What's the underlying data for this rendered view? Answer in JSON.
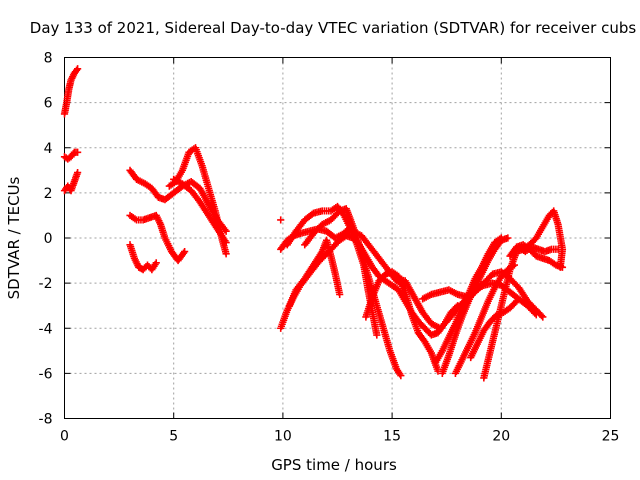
{
  "chart_data": {
    "type": "scatter",
    "title": "Day 133 of 2021, Sidereal Day-to-day VTEC variation (SDTVAR) for receiver cubs",
    "xlabel": "GPS time / hours",
    "ylabel": "SDTVAR / TECUs",
    "xlim": [
      0,
      25
    ],
    "ylim": [
      -8,
      8
    ],
    "xticks": [
      "0",
      "5",
      "10",
      "15",
      "20",
      "25"
    ],
    "yticks": [
      "-8",
      "-6",
      "-4",
      "-2",
      "0",
      "2",
      "4",
      "6",
      "8"
    ],
    "grid": true,
    "marker": "plus",
    "color": "#ff0000",
    "series": [
      {
        "points": [
          [
            0.0,
            5.5
          ],
          [
            0.1,
            6.0
          ],
          [
            0.2,
            6.6
          ],
          [
            0.3,
            7.0
          ],
          [
            0.45,
            7.3
          ],
          [
            0.6,
            7.5
          ]
        ]
      },
      {
        "points": [
          [
            0.0,
            3.6
          ],
          [
            0.15,
            3.5
          ],
          [
            0.3,
            3.6
          ],
          [
            0.45,
            3.8
          ],
          [
            0.6,
            3.8
          ]
        ]
      },
      {
        "points": [
          [
            0.0,
            2.1
          ],
          [
            0.15,
            2.3
          ],
          [
            0.3,
            2.1
          ],
          [
            0.45,
            2.5
          ],
          [
            0.6,
            2.9
          ]
        ]
      },
      {
        "points": [
          [
            3.0,
            3.0
          ],
          [
            3.3,
            2.6
          ],
          [
            3.7,
            2.4
          ],
          [
            4.0,
            2.2
          ],
          [
            4.3,
            1.8
          ],
          [
            4.6,
            1.7
          ],
          [
            5.0,
            2.0
          ],
          [
            5.4,
            2.3
          ],
          [
            5.8,
            2.5
          ],
          [
            6.2,
            2.2
          ],
          [
            6.6,
            1.5
          ],
          [
            7.0,
            0.8
          ],
          [
            7.4,
            0.3
          ]
        ]
      },
      {
        "points": [
          [
            3.0,
            1.0
          ],
          [
            3.3,
            0.8
          ],
          [
            3.6,
            0.8
          ],
          [
            3.9,
            0.9
          ],
          [
            4.2,
            1.0
          ],
          [
            4.4,
            0.6
          ],
          [
            4.6,
            0.0
          ],
          [
            4.9,
            -0.6
          ],
          [
            5.2,
            -1.0
          ],
          [
            5.5,
            -0.6
          ]
        ]
      },
      {
        "points": [
          [
            3.0,
            -0.3
          ],
          [
            3.2,
            -0.9
          ],
          [
            3.4,
            -1.3
          ],
          [
            3.6,
            -1.4
          ],
          [
            3.8,
            -1.2
          ],
          [
            4.0,
            -1.4
          ],
          [
            4.2,
            -1.1
          ]
        ]
      },
      {
        "points": [
          [
            4.8,
            2.3
          ],
          [
            5.1,
            2.5
          ],
          [
            5.4,
            3.0
          ],
          [
            5.7,
            3.8
          ],
          [
            6.0,
            4.0
          ],
          [
            6.3,
            3.2
          ],
          [
            6.6,
            2.2
          ],
          [
            6.9,
            1.2
          ],
          [
            7.2,
            0.0
          ],
          [
            7.4,
            -0.7
          ]
        ]
      },
      {
        "points": [
          [
            5.0,
            2.6
          ],
          [
            5.4,
            2.4
          ],
          [
            5.8,
            2.1
          ],
          [
            6.2,
            1.6
          ],
          [
            6.6,
            1.0
          ],
          [
            7.0,
            0.4
          ],
          [
            7.4,
            -0.2
          ]
        ]
      },
      {
        "points": [
          [
            9.9,
            0.8
          ]
        ]
      },
      {
        "points": [
          [
            9.9,
            -0.5
          ],
          [
            10.2,
            -0.1
          ],
          [
            10.5,
            0.1
          ],
          [
            10.8,
            0.2
          ],
          [
            11.2,
            0.3
          ],
          [
            11.6,
            0.4
          ],
          [
            12.0,
            0.3
          ],
          [
            12.4,
            0.0
          ],
          [
            12.8,
            0.2
          ],
          [
            13.2,
            0.3
          ],
          [
            13.6,
            0.1
          ],
          [
            14.0,
            -0.4
          ],
          [
            14.4,
            -0.9
          ],
          [
            14.8,
            -1.4
          ],
          [
            15.2,
            -1.9
          ],
          [
            15.6,
            -2.1
          ]
        ]
      },
      {
        "points": [
          [
            9.9,
            -4.0
          ],
          [
            10.2,
            -3.2
          ],
          [
            10.5,
            -2.6
          ],
          [
            10.8,
            -2.1
          ],
          [
            11.2,
            -1.6
          ],
          [
            11.6,
            -1.1
          ],
          [
            12.0,
            -0.7
          ],
          [
            12.4,
            -0.3
          ],
          [
            12.8,
            0.2
          ],
          [
            13.0,
            0.4
          ]
        ]
      },
      {
        "points": [
          [
            10.2,
            -0.3
          ],
          [
            10.6,
            0.3
          ],
          [
            11.0,
            0.8
          ],
          [
            11.4,
            1.1
          ],
          [
            11.8,
            1.2
          ],
          [
            12.2,
            1.2
          ],
          [
            12.5,
            1.4
          ],
          [
            12.8,
            1.0
          ],
          [
            13.1,
            0.4
          ],
          [
            13.4,
            -0.3
          ],
          [
            13.7,
            -1.2
          ],
          [
            13.9,
            -2.3
          ],
          [
            14.1,
            -3.3
          ],
          [
            14.3,
            -4.3
          ]
        ]
      },
      {
        "points": [
          [
            10.3,
            -3.0
          ],
          [
            10.6,
            -2.3
          ],
          [
            11.0,
            -1.8
          ],
          [
            11.4,
            -1.2
          ],
          [
            11.8,
            -0.6
          ],
          [
            12.0,
            -0.1
          ],
          [
            12.2,
            -0.8
          ],
          [
            12.4,
            -1.6
          ],
          [
            12.6,
            -2.5
          ]
        ]
      },
      {
        "points": [
          [
            11.0,
            -0.3
          ],
          [
            11.4,
            0.2
          ],
          [
            11.8,
            0.6
          ],
          [
            12.2,
            0.8
          ],
          [
            12.6,
            1.2
          ],
          [
            12.9,
            1.3
          ],
          [
            13.1,
            0.8
          ],
          [
            13.4,
            0.0
          ],
          [
            13.7,
            -1.0
          ],
          [
            14.0,
            -2.0
          ],
          [
            14.3,
            -3.0
          ],
          [
            14.6,
            -4.0
          ],
          [
            14.9,
            -5.0
          ],
          [
            15.2,
            -5.8
          ],
          [
            15.4,
            -6.1
          ]
        ]
      },
      {
        "points": [
          [
            12.6,
            -0.1
          ],
          [
            12.9,
            0.1
          ],
          [
            13.2,
            0.0
          ],
          [
            13.5,
            -0.3
          ],
          [
            13.8,
            -0.8
          ],
          [
            14.1,
            -1.3
          ],
          [
            14.4,
            -1.7
          ],
          [
            14.7,
            -1.9
          ],
          [
            15.0,
            -2.1
          ],
          [
            15.3,
            -2.3
          ],
          [
            15.6,
            -2.8
          ],
          [
            15.9,
            -3.3
          ],
          [
            16.2,
            -3.7
          ],
          [
            16.5,
            -4.0
          ],
          [
            16.8,
            -4.3
          ],
          [
            17.1,
            -4.2
          ],
          [
            17.4,
            -3.8
          ],
          [
            17.7,
            -3.3
          ],
          [
            18.0,
            -3.0
          ]
        ]
      },
      {
        "points": [
          [
            13.8,
            -3.5
          ],
          [
            14.1,
            -2.6
          ],
          [
            14.4,
            -1.9
          ],
          [
            14.7,
            -1.6
          ],
          [
            15.0,
            -1.5
          ],
          [
            15.3,
            -1.7
          ],
          [
            15.6,
            -2.4
          ],
          [
            15.9,
            -3.4
          ],
          [
            16.2,
            -4.2
          ],
          [
            16.5,
            -4.6
          ],
          [
            16.8,
            -5.1
          ],
          [
            17.1,
            -5.9
          ]
        ]
      },
      {
        "points": [
          [
            15.2,
            -1.8
          ],
          [
            15.6,
            -1.9
          ],
          [
            16.0,
            -2.6
          ],
          [
            16.4,
            -3.3
          ],
          [
            16.8,
            -3.8
          ],
          [
            17.2,
            -4.0
          ],
          [
            17.6,
            -3.6
          ],
          [
            18.0,
            -3.1
          ],
          [
            18.4,
            -2.7
          ],
          [
            18.8,
            -2.4
          ],
          [
            19.2,
            -2.0
          ],
          [
            19.6,
            -1.6
          ],
          [
            20.0,
            -1.5
          ],
          [
            20.4,
            -1.8
          ],
          [
            20.8,
            -2.2
          ],
          [
            21.2,
            -2.8
          ],
          [
            21.6,
            -3.2
          ],
          [
            21.9,
            -3.5
          ]
        ]
      },
      {
        "points": [
          [
            16.4,
            -2.7
          ],
          [
            16.8,
            -2.5
          ],
          [
            17.2,
            -2.4
          ],
          [
            17.6,
            -2.3
          ],
          [
            18.0,
            -2.5
          ],
          [
            18.4,
            -2.6
          ],
          [
            18.8,
            -2.3
          ],
          [
            19.2,
            -2.1
          ],
          [
            19.6,
            -2.0
          ],
          [
            20.0,
            -2.1
          ],
          [
            20.4,
            -2.4
          ],
          [
            20.8,
            -2.7
          ],
          [
            21.2,
            -3.0
          ],
          [
            21.6,
            -3.4
          ]
        ]
      },
      {
        "points": [
          [
            17.0,
            -5.5
          ],
          [
            17.3,
            -5.0
          ],
          [
            17.6,
            -4.4
          ],
          [
            17.9,
            -3.8
          ],
          [
            18.2,
            -3.1
          ],
          [
            18.5,
            -2.5
          ],
          [
            18.8,
            -1.8
          ],
          [
            19.1,
            -1.3
          ],
          [
            19.4,
            -0.7
          ],
          [
            19.7,
            -0.2
          ],
          [
            20.0,
            0.0
          ]
        ]
      },
      {
        "points": [
          [
            17.3,
            -6.0
          ],
          [
            17.6,
            -5.2
          ],
          [
            17.9,
            -4.3
          ],
          [
            18.2,
            -3.5
          ],
          [
            18.5,
            -2.8
          ],
          [
            18.8,
            -2.2
          ],
          [
            19.1,
            -1.6
          ],
          [
            19.4,
            -1.0
          ],
          [
            19.7,
            -0.5
          ],
          [
            20.0,
            -0.1
          ],
          [
            20.3,
            0.0
          ]
        ]
      },
      {
        "points": [
          [
            17.9,
            -6.0
          ],
          [
            18.2,
            -5.4
          ],
          [
            18.5,
            -4.8
          ],
          [
            18.8,
            -4.2
          ],
          [
            19.1,
            -3.5
          ],
          [
            19.4,
            -2.8
          ],
          [
            19.7,
            -2.2
          ],
          [
            20.0,
            -1.7
          ],
          [
            20.3,
            -1.4
          ],
          [
            20.6,
            -1.2
          ]
        ]
      },
      {
        "points": [
          [
            18.6,
            -5.3
          ],
          [
            18.9,
            -4.7
          ],
          [
            19.2,
            -4.1
          ],
          [
            19.5,
            -3.7
          ],
          [
            19.8,
            -3.4
          ],
          [
            20.1,
            -3.3
          ],
          [
            20.4,
            -3.1
          ],
          [
            20.7,
            -2.8
          ]
        ]
      },
      {
        "points": [
          [
            19.2,
            -6.2
          ],
          [
            19.5,
            -5.0
          ],
          [
            19.8,
            -3.8
          ],
          [
            20.1,
            -2.6
          ],
          [
            20.4,
            -1.4
          ],
          [
            20.7,
            -0.6
          ],
          [
            21.0,
            -0.5
          ],
          [
            21.3,
            -0.3
          ],
          [
            21.6,
            0.0
          ],
          [
            21.9,
            0.5
          ],
          [
            22.2,
            1.0
          ],
          [
            22.4,
            1.2
          ],
          [
            22.6,
            0.6
          ],
          [
            22.8,
            -0.5
          ],
          [
            22.7,
            -1.3
          ]
        ]
      },
      {
        "points": [
          [
            20.4,
            -0.8
          ],
          [
            20.7,
            -0.4
          ],
          [
            21.0,
            -0.3
          ],
          [
            21.3,
            -0.5
          ],
          [
            21.6,
            -0.8
          ],
          [
            21.9,
            -0.9
          ],
          [
            22.2,
            -1.0
          ],
          [
            22.5,
            -1.2
          ],
          [
            22.8,
            -1.3
          ]
        ]
      },
      {
        "points": [
          [
            20.8,
            -0.4
          ],
          [
            21.1,
            -0.6
          ],
          [
            21.4,
            -0.4
          ],
          [
            21.7,
            -0.5
          ],
          [
            22.0,
            -0.6
          ],
          [
            22.3,
            -0.5
          ],
          [
            22.6,
            -0.5
          ]
        ]
      }
    ]
  }
}
